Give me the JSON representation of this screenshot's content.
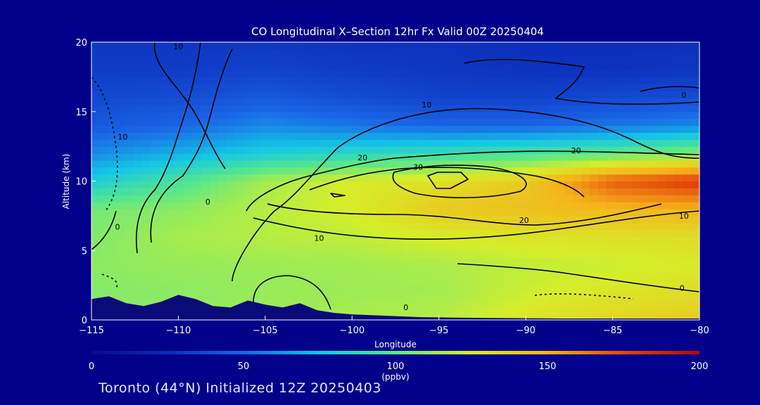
{
  "chart_data": {
    "type": "heatmap",
    "title": "CO Longitudinal X–Section 12hr  Fx Valid 00Z 20250404",
    "xlabel": "Longitude",
    "ylabel": "Altitude (km)",
    "xlim": [
      -115,
      -80
    ],
    "ylim": [
      0,
      20
    ],
    "x_ticks": [
      -115,
      -110,
      -105,
      -100,
      -95,
      -90,
      -85,
      -80
    ],
    "x_tick_labels": [
      "−115",
      "−110",
      "−105",
      "−100",
      "−95",
      "−90",
      "−85",
      "−80"
    ],
    "y_ticks": [
      0,
      5,
      10,
      15,
      20
    ],
    "y_tick_labels": [
      "0",
      "5",
      "10",
      "15",
      "20"
    ],
    "colorbar": {
      "min": 0,
      "max": 200,
      "ticks": [
        0,
        50,
        100,
        150,
        200
      ],
      "tick_labels": [
        "0",
        "50",
        "100",
        "150",
        "200"
      ],
      "unit": "(ppbv)"
    },
    "grid": false,
    "field": {
      "x": [
        -115,
        -110,
        -105,
        -100,
        -95,
        -90,
        -85,
        -80
      ],
      "y": [
        0,
        2,
        4,
        6,
        8,
        10,
        12,
        14,
        16,
        18,
        20
      ],
      "values": [
        [
          110,
          112,
          114,
          116,
          118,
          128,
          135,
          140
        ],
        [
          108,
          110,
          112,
          113,
          114,
          122,
          128,
          132
        ],
        [
          110,
          112,
          113,
          114,
          116,
          120,
          122,
          125
        ],
        [
          108,
          115,
          118,
          120,
          125,
          128,
          130,
          132
        ],
        [
          105,
          110,
          118,
          125,
          140,
          145,
          148,
          150
        ],
        [
          80,
          95,
          115,
          125,
          130,
          140,
          170,
          180
        ],
        [
          60,
          70,
          80,
          85,
          90,
          95,
          100,
          110
        ],
        [
          45,
          50,
          60,
          55,
          50,
          50,
          55,
          60
        ],
        [
          38,
          40,
          45,
          40,
          35,
          35,
          38,
          40
        ],
        [
          32,
          32,
          35,
          32,
          30,
          28,
          28,
          30
        ],
        [
          30,
          30,
          30,
          28,
          28,
          26,
          26,
          26
        ]
      ]
    },
    "terrain": {
      "x": [
        -115,
        -114,
        -113,
        -112,
        -111,
        -110,
        -109,
        -108,
        -107,
        -106,
        -105,
        -104,
        -103,
        -102,
        -101,
        -100,
        -99,
        -98,
        -97,
        -96,
        -95,
        -94,
        -93,
        -92,
        -91,
        -90,
        -89,
        -88,
        -87,
        -86,
        -85,
        -84,
        -83,
        -82,
        -81,
        -80
      ],
      "height_km": [
        1.5,
        1.7,
        1.2,
        1.0,
        1.3,
        1.8,
        1.5,
        1.0,
        0.9,
        1.4,
        1.1,
        0.9,
        1.2,
        0.7,
        0.5,
        0.4,
        0.35,
        0.3,
        0.25,
        0.2,
        0.18,
        0.16,
        0.15,
        0.14,
        0.13,
        0.12,
        0.11,
        0.1,
        0.1,
        0.1,
        0.1,
        0.1,
        0.1,
        0.1,
        0.1,
        0.1
      ]
    },
    "contour_labels": [
      {
        "text": "−10",
        "x": -110,
        "y": 19.5
      },
      {
        "text": "−10",
        "x": -113.2,
        "y": 13.0
      },
      {
        "text": "0",
        "x": -113.5,
        "y": 6.5
      },
      {
        "text": "0",
        "x": -108.3,
        "y": 8.3
      },
      {
        "text": "−10",
        "x": -95.7,
        "y": 15.3
      },
      {
        "text": "−20",
        "x": -99.4,
        "y": 11.5
      },
      {
        "text": "−30",
        "x": -96.2,
        "y": 10.8
      },
      {
        "text": "−20",
        "x": -87.1,
        "y": 12.0
      },
      {
        "text": "−20",
        "x": -90.1,
        "y": 7.0
      },
      {
        "text": "−10",
        "x": -101.9,
        "y": 5.7
      },
      {
        "text": "−10",
        "x": -80.9,
        "y": 7.3
      },
      {
        "text": "0",
        "x": -80.9,
        "y": 16.0
      },
      {
        "text": "0",
        "x": -81.0,
        "y": 2.1
      },
      {
        "text": "0",
        "x": -96.9,
        "y": 0.7
      }
    ]
  },
  "footer": {
    "text": "Toronto (44°N) Initialized 12Z 20250403"
  }
}
